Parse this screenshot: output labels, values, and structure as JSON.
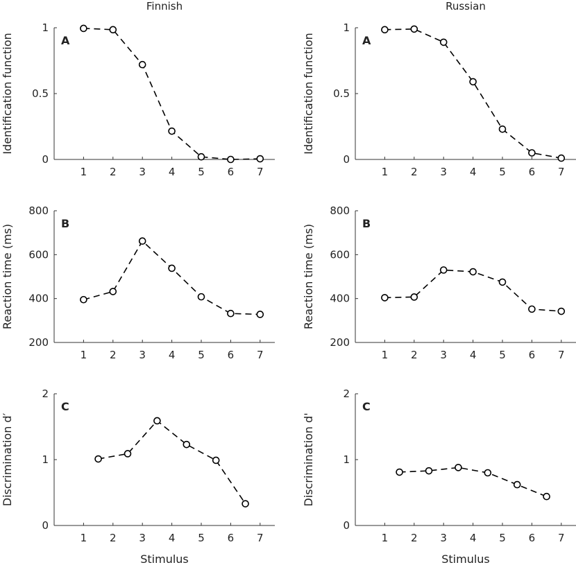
{
  "columns": [
    "Finnish",
    "Russian"
  ],
  "xlabel": "Stimulus",
  "chart_data": [
    {
      "id": "finnish-identification",
      "type": "line",
      "language": "Finnish",
      "panel": "A",
      "ylabel": "Identification function",
      "ylim": [
        0,
        1
      ],
      "yticks": [
        "0",
        "0.5",
        "1"
      ],
      "ytick_values": [
        0,
        0.5,
        1
      ],
      "xlim": [
        0,
        7.5
      ],
      "xticks": [
        "1",
        "2",
        "3",
        "4",
        "5",
        "6",
        "7"
      ],
      "x": [
        1,
        2,
        3,
        4,
        5,
        6,
        7
      ],
      "values": [
        0.995,
        0.985,
        0.72,
        0.215,
        0.02,
        0.0,
        0.005
      ]
    },
    {
      "id": "russian-identification",
      "type": "line",
      "language": "Russian",
      "panel": "A",
      "ylabel": "Identification function",
      "ylim": [
        0,
        1
      ],
      "yticks": [
        "0",
        "0.5",
        "1"
      ],
      "ytick_values": [
        0,
        0.5,
        1
      ],
      "xlim": [
        0,
        7.5
      ],
      "xticks": [
        "1",
        "2",
        "3",
        "4",
        "5",
        "6",
        "7"
      ],
      "x": [
        1,
        2,
        3,
        4,
        5,
        6,
        7
      ],
      "values": [
        0.985,
        0.99,
        0.89,
        0.59,
        0.23,
        0.05,
        0.01
      ]
    },
    {
      "id": "finnish-reaction",
      "type": "line",
      "language": "Finnish",
      "panel": "B",
      "ylabel": "Reaction time (ms)",
      "ylim": [
        200,
        800
      ],
      "yticks": [
        "200",
        "400",
        "600",
        "800"
      ],
      "ytick_values": [
        200,
        400,
        600,
        800
      ],
      "xlim": [
        0,
        7.5
      ],
      "xticks": [
        "1",
        "2",
        "3",
        "4",
        "5",
        "6",
        "7"
      ],
      "x": [
        1,
        2,
        3,
        4,
        5,
        6,
        7
      ],
      "values": [
        395,
        432,
        662,
        538,
        408,
        332,
        328
      ]
    },
    {
      "id": "russian-reaction",
      "type": "line",
      "language": "Russian",
      "panel": "B",
      "ylabel": "Reaction time (ms)",
      "ylim": [
        200,
        800
      ],
      "yticks": [
        "200",
        "400",
        "600",
        "800"
      ],
      "ytick_values": [
        200,
        400,
        600,
        800
      ],
      "xlim": [
        0,
        7.5
      ],
      "xticks": [
        "1",
        "2",
        "3",
        "4",
        "5",
        "6",
        "7"
      ],
      "x": [
        1,
        2,
        3,
        4,
        5,
        6,
        7
      ],
      "values": [
        404,
        407,
        530,
        522,
        475,
        352,
        342
      ]
    },
    {
      "id": "finnish-discrimination",
      "type": "line",
      "language": "Finnish",
      "panel": "C",
      "ylabel": "Discrimination d′",
      "ylim": [
        0,
        2
      ],
      "yticks": [
        "0",
        "1",
        "2"
      ],
      "ytick_values": [
        0,
        1,
        2
      ],
      "xlim": [
        0,
        7.5
      ],
      "xticks": [
        "1",
        "2",
        "3",
        "4",
        "5",
        "6",
        "7"
      ],
      "x": [
        1.5,
        2.5,
        3.5,
        4.5,
        5.5,
        6.5
      ],
      "values": [
        1.01,
        1.09,
        1.59,
        1.23,
        0.99,
        0.33
      ]
    },
    {
      "id": "russian-discrimination",
      "type": "line",
      "language": "Russian",
      "panel": "C",
      "ylabel": "Discrimination d'",
      "ylim": [
        0,
        2
      ],
      "yticks": [
        "0",
        "1",
        "2"
      ],
      "ytick_values": [
        0,
        1,
        2
      ],
      "xlim": [
        0,
        7.5
      ],
      "xticks": [
        "1",
        "2",
        "3",
        "4",
        "5",
        "6",
        "7"
      ],
      "x": [
        1.5,
        2.5,
        3.5,
        4.5,
        5.5,
        6.5
      ],
      "values": [
        0.81,
        0.83,
        0.88,
        0.8,
        0.62,
        0.44
      ]
    }
  ]
}
